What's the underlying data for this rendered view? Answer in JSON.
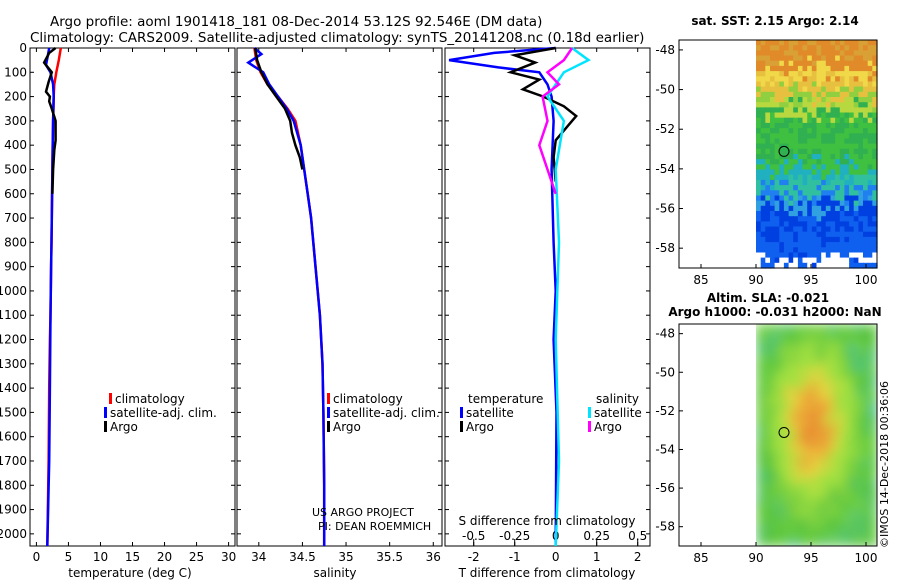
{
  "header": {
    "title_line1": "Argo profile: aoml 1901418_181 08-Dec-2014 53.12S 92.546E (DM data)",
    "title_line2": "Climatology: CARS2009. Satellite-adjusted climatology: synTS_20141208.nc (0.18d earlier)"
  },
  "colors": {
    "climatology": "#ff0000",
    "satellite": "#0000ff",
    "argo": "#000000",
    "sat_salinity": "#00e5ff",
    "argo_salinity": "#ff00ff"
  },
  "chart_data": [
    {
      "type": "line",
      "id": "temperature",
      "xlabel": "temperature (deg C)",
      "xlim": [
        -1,
        31
      ],
      "ylim": [
        2050,
        0
      ],
      "xticks": [
        0,
        5,
        10,
        15,
        20,
        25,
        30
      ],
      "yticks": [
        0,
        100,
        200,
        300,
        400,
        500,
        600,
        700,
        800,
        900,
        1000,
        1100,
        1200,
        1300,
        1400,
        1500,
        1600,
        1700,
        1800,
        1900,
        2000
      ],
      "legend": [
        "climatology",
        "satellite-adj. clim.",
        "Argo"
      ],
      "series": [
        {
          "name": "climatology",
          "color": "#ff0000",
          "x": [
            3.8,
            3.5,
            3.1,
            2.8,
            2.7,
            2.6,
            2.55,
            2.5,
            2.45,
            2.4,
            2.35,
            2.3,
            2.25,
            2.2,
            2.1,
            2.0,
            1.9,
            1.7
          ],
          "y": [
            0,
            50,
            100,
            150,
            200,
            300,
            400,
            500,
            600,
            700,
            800,
            900,
            1000,
            1100,
            1200,
            1400,
            1700,
            2050
          ]
        },
        {
          "name": "satellite-adj. clim.",
          "color": "#0000ff",
          "x": [
            2.0,
            1.8,
            1.5,
            2.2,
            2.6,
            2.7,
            2.6,
            2.55,
            2.5,
            2.45,
            2.4,
            2.35,
            2.3,
            2.25,
            2.2,
            2.1,
            2.0,
            1.7
          ],
          "y": [
            0,
            30,
            70,
            100,
            150,
            200,
            300,
            400,
            500,
            600,
            700,
            800,
            900,
            1000,
            1100,
            1400,
            1700,
            2050
          ]
        },
        {
          "name": "Argo",
          "color": "#000000",
          "x": [
            3.0,
            2.0,
            1.2,
            2.4,
            1.9,
            1.5,
            2.1,
            2.0,
            2.4,
            3.0,
            3.0,
            2.8,
            2.6,
            2.5
          ],
          "y": [
            0,
            20,
            60,
            100,
            140,
            180,
            200,
            220,
            250,
            300,
            380,
            420,
            500,
            600
          ]
        }
      ]
    },
    {
      "type": "line",
      "id": "salinity",
      "xlabel": "salinity",
      "xlim": [
        33.75,
        36.1
      ],
      "ylim": [
        2050,
        0
      ],
      "xticks": [
        34,
        34.5,
        35,
        35.5,
        36
      ],
      "xticklabels": [
        "34",
        "34.5",
        "35",
        "35.5",
        "36"
      ],
      "legend": [
        "climatology",
        "satellite-adj. clim.",
        "Argo"
      ],
      "series": [
        {
          "name": "climatology",
          "color": "#ff0000",
          "x": [
            33.95,
            33.97,
            34.02,
            34.1,
            34.22,
            34.33,
            34.42,
            34.48,
            34.52,
            34.56,
            34.6,
            34.65,
            34.7,
            34.73,
            34.74,
            34.75,
            34.75
          ],
          "y": [
            0,
            50,
            100,
            150,
            200,
            250,
            300,
            400,
            500,
            600,
            700,
            900,
            1100,
            1300,
            1500,
            1800,
            2050
          ]
        },
        {
          "name": "satellite-adj. clim.",
          "color": "#0000ff",
          "x": [
            33.95,
            34.03,
            33.88,
            34.05,
            34.12,
            34.22,
            34.32,
            34.4,
            34.48,
            34.52,
            34.56,
            34.6,
            34.65,
            34.7,
            34.73,
            34.74,
            34.75,
            34.75
          ],
          "y": [
            0,
            25,
            60,
            100,
            150,
            200,
            250,
            300,
            400,
            500,
            600,
            700,
            900,
            1100,
            1300,
            1500,
            1800,
            2050
          ]
        },
        {
          "name": "Argo",
          "color": "#000000",
          "x": [
            33.96,
            33.98,
            34.03,
            34.1,
            34.2,
            34.3,
            34.36,
            34.38,
            34.42,
            34.47,
            34.5
          ],
          "y": [
            0,
            50,
            100,
            150,
            200,
            250,
            300,
            350,
            400,
            450,
            500
          ]
        }
      ]
    },
    {
      "type": "line",
      "id": "difference",
      "xlabel": "T difference from climatology",
      "xlabel2": "S difference from climatology",
      "xlim": [
        -2.7,
        2.3
      ],
      "ylim": [
        2050,
        0
      ],
      "xticks": [
        -2,
        -1,
        0,
        1,
        2
      ],
      "xticks_s": [
        -0.5,
        -0.25,
        0,
        0.25,
        0.5
      ],
      "xticklabels_s": [
        "-0.5",
        "-0.25",
        "0",
        "0.25",
        "0.5"
      ],
      "legend_temperature_title": "temperature",
      "legend_salinity_title": "salinity",
      "legend": [
        "satellite",
        "Argo",
        "satellite",
        "Argo"
      ],
      "series": [
        {
          "name": "temperature satellite",
          "color": "#0000ff",
          "x": [
            0,
            -1.5,
            -2.6,
            -1.4,
            -0.4,
            -0.2,
            -0.1,
            -0.05,
            -0.1,
            -0.05,
            0,
            -0.05,
            0.02,
            0
          ],
          "y": [
            0,
            20,
            50,
            80,
            100,
            150,
            200,
            300,
            500,
            800,
            1000,
            1200,
            1500,
            2050
          ]
        },
        {
          "name": "temperature Argo",
          "color": "#000000",
          "x": [
            0,
            -1.0,
            -0.5,
            -1.1,
            -0.4,
            -0.8,
            -0.3,
            0.2,
            0.5,
            0.3,
            0.0,
            -0.05,
            0
          ],
          "y": [
            0,
            30,
            60,
            100,
            130,
            170,
            200,
            240,
            280,
            320,
            380,
            450,
            550
          ]
        },
        {
          "name": "salinity satellite",
          "color": "#00e5ff",
          "x": [
            0.1,
            0.2,
            0.05,
            0,
            -0.05,
            0.05,
            0,
            0.02,
            0,
            0.02,
            0
          ],
          "y": [
            0,
            50,
            100,
            150,
            200,
            300,
            500,
            800,
            1200,
            1700,
            2050
          ]
        },
        {
          "name": "salinity Argo",
          "color": "#ff00ff",
          "x": [
            0.1,
            0.05,
            -0.05,
            0.02,
            -0.08,
            -0.05,
            -0.1,
            -0.05,
            0
          ],
          "y": [
            0,
            50,
            100,
            150,
            200,
            300,
            400,
            500,
            600
          ]
        }
      ]
    },
    {
      "type": "heatmap",
      "id": "sst-map",
      "title": "sat. SST: 2.15 Argo: 2.14",
      "xticks": [
        85,
        90,
        95,
        100
      ],
      "yticks": [
        -48,
        -50,
        -52,
        -54,
        -56,
        -58
      ],
      "xlim": [
        83,
        101
      ],
      "ylim": [
        -59,
        -47.5
      ],
      "marker": {
        "lon": 92.546,
        "lat": -53.12
      }
    },
    {
      "type": "heatmap",
      "id": "sla-map",
      "title": "Altim. SLA: -0.021",
      "title2": "Argo h1000: -0.031 h2000: NaN",
      "xticks": [
        85,
        90,
        95,
        100
      ],
      "yticks": [
        -48,
        -50,
        -52,
        -54,
        -56,
        -58
      ],
      "xlim": [
        83,
        101
      ],
      "ylim": [
        -59,
        -47.5
      ],
      "marker": {
        "lon": 92.546,
        "lat": -53.12
      }
    }
  ],
  "credits": {
    "line1": "US ARGO PROJECT",
    "line2": "PI: DEAN ROEMMICH",
    "imos": "©IMOS 14-Dec-2018 00:36:06"
  }
}
